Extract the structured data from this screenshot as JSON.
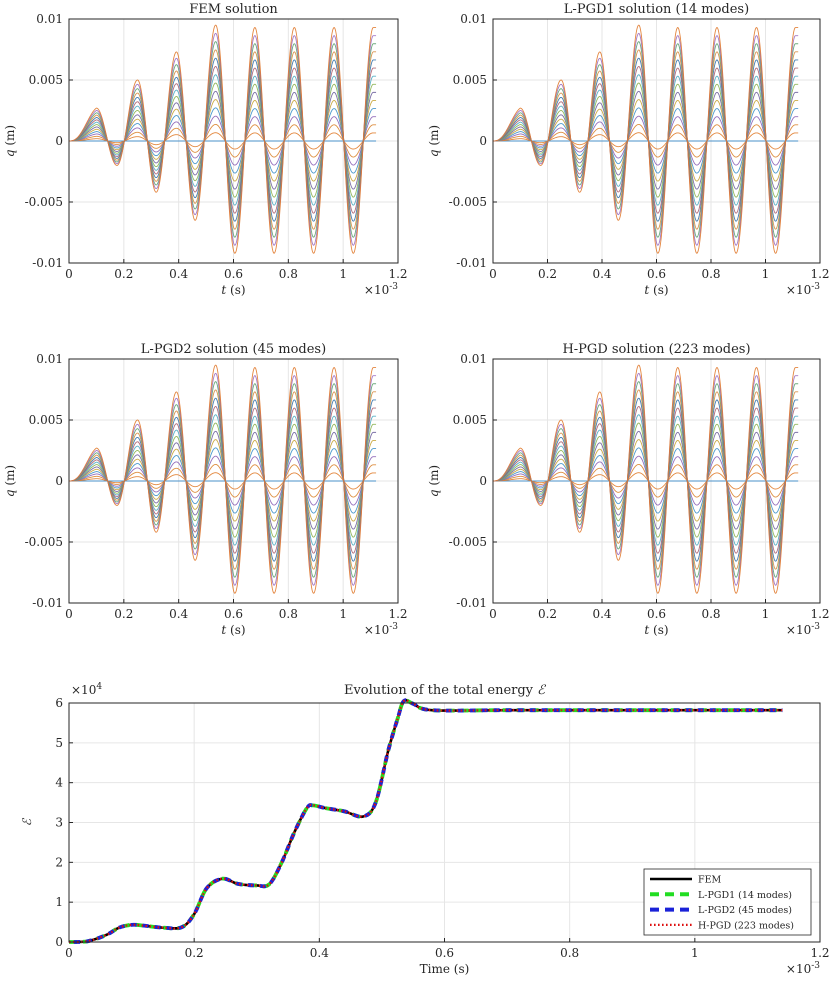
{
  "chart_data": [
    {
      "type": "line",
      "id": "fem",
      "title": "FEM solution",
      "xlabel_sym": "t",
      "xlabel_unit": " (s)",
      "ylabel_sym": "q",
      "ylabel_unit": " (m)",
      "xlim": [
        0,
        0.0012
      ],
      "ylim": [
        -0.01,
        0.01
      ],
      "x_ticks": [
        0,
        0.2,
        0.4,
        0.6,
        0.8,
        1,
        1.2
      ],
      "x_tick_labels": [
        "0",
        "0.2",
        "0.4",
        "0.6",
        "0.8",
        "1",
        "1.2"
      ],
      "y_ticks": [
        -0.01,
        -0.005,
        0,
        0.005,
        0.01
      ],
      "y_tick_labels": [
        "-0.01",
        "-0.005",
        "0",
        "0.005",
        "0.01"
      ],
      "x_exponent_base": "×10",
      "x_exponent": "-3",
      "grid": true,
      "duration": 0.00112,
      "peaks_times": [
        0.0001,
        0.000175,
        0.00025,
        0.000318,
        0.000392,
        0.00046,
        0.000535,
        0.000605,
        0.000678,
        0.000748,
        0.000822,
        0.000892,
        0.000967,
        0.001037,
        0.00111
      ],
      "peak_values": [
        0.0027,
        -0.002,
        0.005,
        -0.0042,
        0.0073,
        -0.0065,
        0.0095,
        -0.0092,
        0.0093,
        -0.0092,
        0.0093,
        -0.0092,
        0.0093,
        -0.0092,
        0.0093
      ],
      "num_curves": 14,
      "curve_colors": [
        "#e07b2a",
        "#d9822b",
        "#8a5fb5",
        "#3a8ec7",
        "#c7a233",
        "#6b5f9c",
        "#88b04b",
        "#4aa8c2",
        "#a85c6b",
        "#2f6fa8",
        "#d58a3c",
        "#5a9e6f",
        "#9a6ac0",
        "#e0782a"
      ]
    },
    {
      "type": "line",
      "id": "lpgd1",
      "title": "L-PGD1 solution (14 modes)",
      "xlabel_sym": "t",
      "xlabel_unit": " (s)",
      "ylabel_sym": "q",
      "ylabel_unit": " (m)",
      "xlim": [
        0,
        0.0012
      ],
      "ylim": [
        -0.01,
        0.01
      ],
      "x_ticks": [
        0,
        0.2,
        0.4,
        0.6,
        0.8,
        1,
        1.2
      ],
      "x_tick_labels": [
        "0",
        "0.2",
        "0.4",
        "0.6",
        "0.8",
        "1",
        "1.2"
      ],
      "y_ticks": [
        -0.01,
        -0.005,
        0,
        0.005,
        0.01
      ],
      "y_tick_labels": [
        "-0.01",
        "-0.005",
        "0",
        "0.005",
        "0.01"
      ],
      "x_exponent_base": "×10",
      "x_exponent": "-3",
      "grid": true,
      "duration": 0.00112,
      "peaks_times": [
        0.0001,
        0.000175,
        0.00025,
        0.000318,
        0.000392,
        0.00046,
        0.000535,
        0.000605,
        0.000678,
        0.000748,
        0.000822,
        0.000892,
        0.000967,
        0.001037,
        0.00111
      ],
      "peak_values": [
        0.0027,
        -0.002,
        0.005,
        -0.0042,
        0.0073,
        -0.0065,
        0.0095,
        -0.0092,
        0.0093,
        -0.0092,
        0.0093,
        -0.0092,
        0.0093,
        -0.0092,
        0.0093
      ],
      "num_curves": 14,
      "curve_colors": [
        "#e07b2a",
        "#d9822b",
        "#8a5fb5",
        "#3a8ec7",
        "#c7a233",
        "#6b5f9c",
        "#88b04b",
        "#4aa8c2",
        "#a85c6b",
        "#2f6fa8",
        "#d58a3c",
        "#5a9e6f",
        "#9a6ac0",
        "#e0782a"
      ]
    },
    {
      "type": "line",
      "id": "lpgd2",
      "title": "L-PGD2 solution (45 modes)",
      "xlabel_sym": "t",
      "xlabel_unit": " (s)",
      "ylabel_sym": "q",
      "ylabel_unit": " (m)",
      "xlim": [
        0,
        0.0012
      ],
      "ylim": [
        -0.01,
        0.01
      ],
      "x_ticks": [
        0,
        0.2,
        0.4,
        0.6,
        0.8,
        1,
        1.2
      ],
      "x_tick_labels": [
        "0",
        "0.2",
        "0.4",
        "0.6",
        "0.8",
        "1",
        "1.2"
      ],
      "y_ticks": [
        -0.01,
        -0.005,
        0,
        0.005,
        0.01
      ],
      "y_tick_labels": [
        "-0.01",
        "-0.005",
        "0",
        "0.005",
        "0.01"
      ],
      "x_exponent_base": "×10",
      "x_exponent": "-3",
      "grid": true,
      "duration": 0.00112,
      "peaks_times": [
        0.0001,
        0.000175,
        0.00025,
        0.000318,
        0.000392,
        0.00046,
        0.000535,
        0.000605,
        0.000678,
        0.000748,
        0.000822,
        0.000892,
        0.000967,
        0.001037,
        0.00111
      ],
      "peak_values": [
        0.0027,
        -0.002,
        0.005,
        -0.0042,
        0.0073,
        -0.0065,
        0.0095,
        -0.0092,
        0.0093,
        -0.0092,
        0.0093,
        -0.0092,
        0.0093,
        -0.0092,
        0.0093
      ],
      "num_curves": 14,
      "curve_colors": [
        "#e07b2a",
        "#d9822b",
        "#8a5fb5",
        "#3a8ec7",
        "#c7a233",
        "#6b5f9c",
        "#88b04b",
        "#4aa8c2",
        "#a85c6b",
        "#2f6fa8",
        "#d58a3c",
        "#5a9e6f",
        "#9a6ac0",
        "#e0782a"
      ]
    },
    {
      "type": "line",
      "id": "hpgd",
      "title": "H-PGD solution (223 modes)",
      "xlabel_sym": "t",
      "xlabel_unit": " (s)",
      "ylabel_sym": "q",
      "ylabel_unit": " (m)",
      "xlim": [
        0,
        0.0012
      ],
      "ylim": [
        -0.01,
        0.01
      ],
      "x_ticks": [
        0,
        0.2,
        0.4,
        0.6,
        0.8,
        1,
        1.2
      ],
      "x_tick_labels": [
        "0",
        "0.2",
        "0.4",
        "0.6",
        "0.8",
        "1",
        "1.2"
      ],
      "y_ticks": [
        -0.01,
        -0.005,
        0,
        0.005,
        0.01
      ],
      "y_tick_labels": [
        "-0.01",
        "-0.005",
        "0",
        "0.005",
        "0.01"
      ],
      "x_exponent_base": "×10",
      "x_exponent": "-3",
      "grid": true,
      "duration": 0.00112,
      "peaks_times": [
        0.0001,
        0.000175,
        0.00025,
        0.000318,
        0.000392,
        0.00046,
        0.000535,
        0.000605,
        0.000678,
        0.000748,
        0.000822,
        0.000892,
        0.000967,
        0.001037,
        0.00111
      ],
      "peak_values": [
        0.0027,
        -0.002,
        0.005,
        -0.0042,
        0.0073,
        -0.0065,
        0.0095,
        -0.0092,
        0.0093,
        -0.0092,
        0.0093,
        -0.0092,
        0.0093,
        -0.0092,
        0.0093
      ],
      "num_curves": 14,
      "curve_colors": [
        "#e07b2a",
        "#d9822b",
        "#8a5fb5",
        "#3a8ec7",
        "#c7a233",
        "#6b5f9c",
        "#88b04b",
        "#4aa8c2",
        "#a85c6b",
        "#2f6fa8",
        "#d58a3c",
        "#5a9e6f",
        "#9a6ac0",
        "#e0782a"
      ]
    },
    {
      "type": "line",
      "id": "energy",
      "title_prefix": "Evolution of the total energy ",
      "title_sym": "ℰ",
      "xlabel": "Time (s)",
      "ylabel_sym": "ℰ",
      "xlim": [
        0,
        0.0012
      ],
      "ylim": [
        0,
        60000
      ],
      "x_ticks": [
        0,
        0.2,
        0.4,
        0.6,
        0.8,
        1,
        1.2
      ],
      "x_tick_labels": [
        "0",
        "0.2",
        "0.4",
        "0.6",
        "0.8",
        "1",
        "1.2"
      ],
      "y_ticks": [
        0,
        1,
        2,
        3,
        4,
        5,
        6
      ],
      "y_tick_labels": [
        "0",
        "1",
        "2",
        "3",
        "4",
        "5",
        "6"
      ],
      "x_exponent_base": "×10",
      "x_exponent": "-3",
      "y_exponent_base": "×10",
      "y_exponent": "4",
      "grid": true,
      "legend_position": "bottom-right",
      "x": [
        0,
        3e-05,
        6e-05,
        8e-05,
        0.0001,
        0.00012,
        0.00015,
        0.00018,
        0.0002,
        0.00022,
        0.000245,
        0.00027,
        0.0003,
        0.00032,
        0.00034,
        0.00036,
        0.00038,
        0.00039,
        0.00041,
        0.00044,
        0.00047,
        0.00049,
        0.00051,
        0.000525,
        0.000535,
        0.00055,
        0.00058,
        0.0007,
        0.0009,
        0.00114
      ],
      "y": [
        0,
        200,
        1800,
        3600,
        4300,
        4100,
        3600,
        3700,
        7000,
        13500,
        15900,
        14600,
        14200,
        14500,
        20000,
        27500,
        33600,
        34300,
        33600,
        32800,
        31500,
        35000,
        48000,
        56000,
        60500,
        59800,
        58200,
        58200,
        58200,
        58200
      ],
      "series": [
        {
          "name": "FEM",
          "color": "#000000",
          "style": "solid"
        },
        {
          "name": "L-PGD1 (14 modes)",
          "color": "#22dd22",
          "style": "dashed"
        },
        {
          "name": "L-PGD2 (45 modes)",
          "color": "#1a22d8",
          "style": "dashed"
        },
        {
          "name": "H-PGD (223 modes)",
          "color": "#dd1111",
          "style": "dotted"
        }
      ]
    }
  ]
}
